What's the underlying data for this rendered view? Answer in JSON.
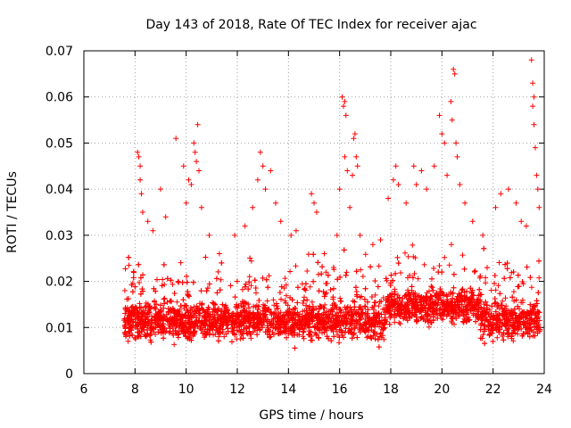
{
  "chart_data": {
    "type": "scatter",
    "title": "Day 143 of 2018, Rate Of TEC Index for receiver ajac",
    "xlabel": "GPS time / hours",
    "ylabel": "ROTI / TECUs",
    "xlim": [
      6,
      24
    ],
    "ylim": [
      0,
      0.07
    ],
    "xticks": [
      "6",
      "8",
      "10",
      "12",
      "14",
      "16",
      "18",
      "20",
      "22",
      "24"
    ],
    "yticks": [
      "0",
      "0.01",
      "0.02",
      "0.03",
      "0.04",
      "0.05",
      "0.06",
      "0.07"
    ],
    "grid": true,
    "marker": "+",
    "color": "#ff0000",
    "series": [
      {
        "name": "ROTI",
        "points": [
          [
            7.6,
            0.018
          ],
          [
            7.8,
            0.013
          ],
          [
            8.1,
            0.048
          ],
          [
            8.15,
            0.047
          ],
          [
            8.2,
            0.045
          ],
          [
            8.2,
            0.042
          ],
          [
            8.25,
            0.039
          ],
          [
            8.3,
            0.035
          ],
          [
            8.5,
            0.033
          ],
          [
            8.7,
            0.031
          ],
          [
            9.0,
            0.04
          ],
          [
            9.2,
            0.034
          ],
          [
            9.6,
            0.051
          ],
          [
            9.9,
            0.045
          ],
          [
            10.0,
            0.037
          ],
          [
            10.1,
            0.042
          ],
          [
            10.2,
            0.041
          ],
          [
            10.3,
            0.05
          ],
          [
            10.35,
            0.048
          ],
          [
            10.4,
            0.046
          ],
          [
            10.45,
            0.054
          ],
          [
            10.5,
            0.044
          ],
          [
            10.6,
            0.036
          ],
          [
            10.9,
            0.03
          ],
          [
            11.3,
            0.026
          ],
          [
            11.9,
            0.03
          ],
          [
            12.3,
            0.032
          ],
          [
            12.6,
            0.036
          ],
          [
            12.8,
            0.042
          ],
          [
            12.9,
            0.048
          ],
          [
            13.0,
            0.045
          ],
          [
            13.1,
            0.04
          ],
          [
            13.3,
            0.044
          ],
          [
            13.5,
            0.037
          ],
          [
            13.7,
            0.033
          ],
          [
            14.1,
            0.03
          ],
          [
            14.3,
            0.031
          ],
          [
            14.9,
            0.039
          ],
          [
            15.0,
            0.037
          ],
          [
            15.1,
            0.035
          ],
          [
            15.4,
            0.026
          ],
          [
            15.9,
            0.03
          ],
          [
            16.0,
            0.04
          ],
          [
            16.1,
            0.06
          ],
          [
            16.15,
            0.058
          ],
          [
            16.2,
            0.059
          ],
          [
            16.25,
            0.056
          ],
          [
            16.2,
            0.047
          ],
          [
            16.3,
            0.044
          ],
          [
            16.4,
            0.036
          ],
          [
            16.5,
            0.043
          ],
          [
            16.55,
            0.051
          ],
          [
            16.6,
            0.052
          ],
          [
            16.65,
            0.047
          ],
          [
            16.7,
            0.045
          ],
          [
            16.8,
            0.03
          ],
          [
            17.3,
            0.028
          ],
          [
            17.6,
            0.029
          ],
          [
            17.9,
            0.038
          ],
          [
            18.1,
            0.042
          ],
          [
            18.2,
            0.045
          ],
          [
            18.3,
            0.041
          ],
          [
            18.6,
            0.037
          ],
          [
            18.9,
            0.045
          ],
          [
            19.0,
            0.041
          ],
          [
            19.2,
            0.044
          ],
          [
            19.4,
            0.04
          ],
          [
            19.7,
            0.045
          ],
          [
            19.9,
            0.056
          ],
          [
            20.0,
            0.052
          ],
          [
            20.1,
            0.05
          ],
          [
            20.2,
            0.043
          ],
          [
            20.35,
            0.059
          ],
          [
            20.4,
            0.055
          ],
          [
            20.45,
            0.066
          ],
          [
            20.5,
            0.065
          ],
          [
            20.55,
            0.05
          ],
          [
            20.6,
            0.047
          ],
          [
            20.7,
            0.041
          ],
          [
            20.9,
            0.037
          ],
          [
            21.2,
            0.033
          ],
          [
            21.6,
            0.03
          ],
          [
            22.1,
            0.036
          ],
          [
            22.3,
            0.039
          ],
          [
            22.6,
            0.04
          ],
          [
            22.9,
            0.037
          ],
          [
            23.1,
            0.033
          ],
          [
            23.3,
            0.032
          ],
          [
            23.5,
            0.068
          ],
          [
            23.55,
            0.063
          ],
          [
            23.6,
            0.06
          ],
          [
            23.55,
            0.058
          ],
          [
            23.6,
            0.054
          ],
          [
            23.65,
            0.049
          ],
          [
            23.7,
            0.043
          ],
          [
            23.75,
            0.04
          ],
          [
            23.8,
            0.036
          ]
        ]
      }
    ]
  }
}
